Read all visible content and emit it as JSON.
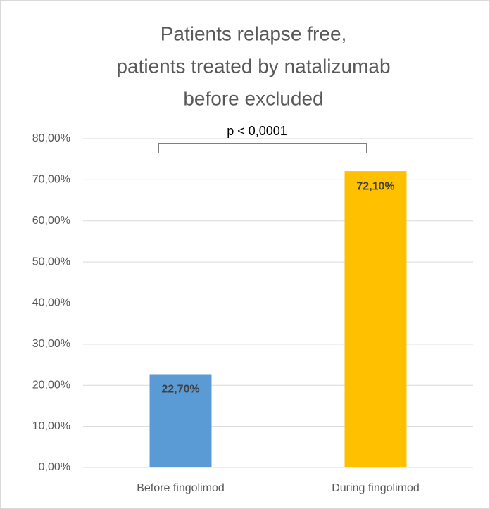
{
  "chart_data": {
    "type": "bar",
    "title": [
      "Patients relapse free,",
      "patients treated by natalizumab",
      "before excluded"
    ],
    "annotation": "p < 0,0001",
    "categories": [
      "Before fingolimod",
      "During fingolimod"
    ],
    "values": [
      22.7,
      72.1
    ],
    "value_labels": [
      "22,70%",
      "72,10%"
    ],
    "colors": [
      "#5b9bd5",
      "#ffc000"
    ],
    "ylim": [
      0,
      80
    ],
    "yticks": [
      {
        "value": 0,
        "label": "0,00%"
      },
      {
        "value": 10,
        "label": "10,00%"
      },
      {
        "value": 20,
        "label": "20,00%"
      },
      {
        "value": 30,
        "label": "30,00%"
      },
      {
        "value": 40,
        "label": "40,00%"
      },
      {
        "value": 50,
        "label": "50,00%"
      },
      {
        "value": 60,
        "label": "60,00%"
      },
      {
        "value": 70,
        "label": "70,00%"
      },
      {
        "value": 80,
        "label": "80,00%"
      }
    ],
    "grid": true
  }
}
